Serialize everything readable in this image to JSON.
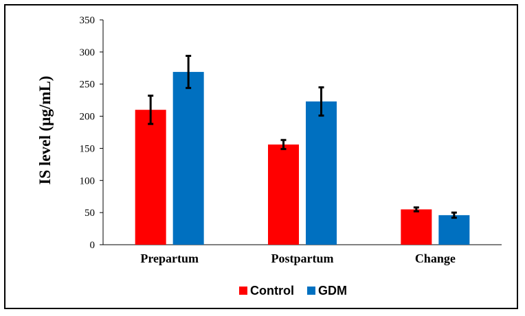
{
  "chart_data": {
    "type": "bar",
    "title": "",
    "xlabel": "",
    "ylabel": "IS level (µg/mL)",
    "ylim": [
      0,
      350
    ],
    "yticks": [
      0,
      50,
      100,
      150,
      200,
      250,
      300,
      350
    ],
    "categories": [
      "Prepartum",
      "Postpartum",
      "Change"
    ],
    "series": [
      {
        "name": "Control",
        "color": "#ff0000",
        "values": [
          210,
          156,
          55
        ],
        "errors": [
          22,
          7,
          3
        ]
      },
      {
        "name": "GDM",
        "color": "#0070c0",
        "values": [
          269,
          223,
          46
        ],
        "errors": [
          25,
          22,
          4
        ]
      }
    ],
    "grid": false,
    "legend": "bottom-center",
    "error_bars": true
  }
}
